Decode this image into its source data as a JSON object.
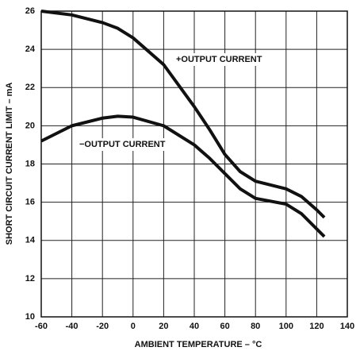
{
  "chart_data": {
    "type": "line",
    "xlabel": "AMBIENT TEMPERATURE – °C",
    "ylabel": "SHORT CIRCUIT CURRENT LIMIT – mA",
    "x": [
      -60,
      -40,
      -20,
      -10,
      0,
      20,
      40,
      50,
      60,
      70,
      80,
      100,
      110,
      120,
      125
    ],
    "series": [
      {
        "name": "+OUTPUT CURRENT",
        "color": "#111111",
        "values": [
          26,
          25.8,
          25.4,
          25.1,
          24.6,
          23.2,
          21,
          19.8,
          18.5,
          17.6,
          17.1,
          16.7,
          16.3,
          15.6,
          15.2
        ]
      },
      {
        "name": "−OUTPUT CURRENT",
        "color": "#111111",
        "values": [
          19.2,
          20,
          20.4,
          20.5,
          20.45,
          20,
          19,
          18.3,
          17.5,
          16.7,
          16.2,
          15.9,
          15.4,
          14.6,
          14.2
        ]
      }
    ],
    "xlim": [
      -60,
      140
    ],
    "xticks": [
      -60,
      -40,
      -20,
      0,
      20,
      40,
      60,
      80,
      100,
      120,
      140
    ],
    "ylim": [
      10,
      26
    ],
    "yticks": [
      10,
      12,
      14,
      16,
      18,
      20,
      22,
      24,
      26
    ],
    "grid": true
  }
}
